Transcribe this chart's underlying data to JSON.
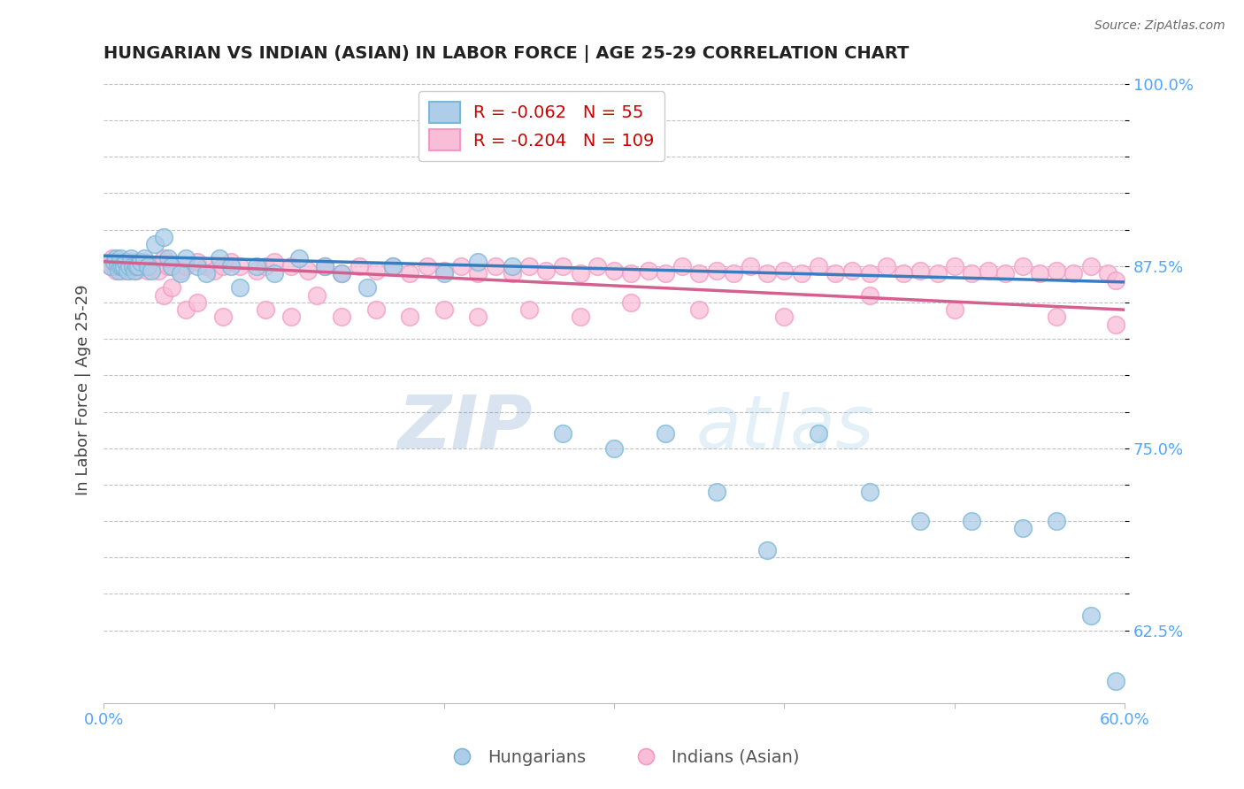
{
  "title": "HUNGARIAN VS INDIAN (ASIAN) IN LABOR FORCE | AGE 25-29 CORRELATION CHART",
  "source_text": "Source: ZipAtlas.com",
  "ylabel": "In Labor Force | Age 25-29",
  "xlim": [
    0.0,
    0.6
  ],
  "ylim": [
    0.575,
    1.005
  ],
  "blue_color": "#7ab8d9",
  "pink_color": "#f49ac2",
  "blue_fill": "#aecde8",
  "pink_fill": "#f9bdd8",
  "trend_blue": "#3a7dbf",
  "trend_pink": "#d46090",
  "legend_R_blue": "-0.062",
  "legend_N_blue": "55",
  "legend_R_pink": "-0.204",
  "legend_N_pink": "109",
  "watermark_zip": "ZIP",
  "watermark_atlas": "atlas",
  "blue_scatter_x": [
    0.004,
    0.006,
    0.007,
    0.008,
    0.009,
    0.01,
    0.01,
    0.011,
    0.012,
    0.013,
    0.014,
    0.015,
    0.016,
    0.017,
    0.018,
    0.019,
    0.02,
    0.022,
    0.024,
    0.026,
    0.028,
    0.03,
    0.035,
    0.038,
    0.04,
    0.045,
    0.048,
    0.055,
    0.06,
    0.068,
    0.075,
    0.08,
    0.09,
    0.1,
    0.115,
    0.13,
    0.14,
    0.155,
    0.17,
    0.2,
    0.22,
    0.24,
    0.27,
    0.3,
    0.33,
    0.36,
    0.39,
    0.42,
    0.45,
    0.48,
    0.51,
    0.54,
    0.56,
    0.58,
    0.595
  ],
  "blue_scatter_y": [
    0.875,
    0.878,
    0.88,
    0.875,
    0.872,
    0.875,
    0.88,
    0.875,
    0.875,
    0.878,
    0.872,
    0.875,
    0.88,
    0.875,
    0.872,
    0.875,
    0.875,
    0.878,
    0.88,
    0.875,
    0.872,
    0.89,
    0.895,
    0.88,
    0.875,
    0.87,
    0.88,
    0.875,
    0.87,
    0.88,
    0.875,
    0.86,
    0.875,
    0.87,
    0.88,
    0.875,
    0.87,
    0.86,
    0.875,
    0.87,
    0.878,
    0.875,
    0.76,
    0.75,
    0.76,
    0.72,
    0.68,
    0.76,
    0.72,
    0.7,
    0.7,
    0.695,
    0.7,
    0.635,
    0.59
  ],
  "pink_scatter_x": [
    0.004,
    0.005,
    0.006,
    0.007,
    0.008,
    0.009,
    0.01,
    0.011,
    0.012,
    0.013,
    0.014,
    0.015,
    0.016,
    0.017,
    0.018,
    0.019,
    0.02,
    0.022,
    0.024,
    0.026,
    0.028,
    0.03,
    0.032,
    0.035,
    0.038,
    0.04,
    0.045,
    0.048,
    0.055,
    0.06,
    0.065,
    0.07,
    0.075,
    0.08,
    0.09,
    0.095,
    0.1,
    0.11,
    0.12,
    0.13,
    0.14,
    0.15,
    0.16,
    0.17,
    0.18,
    0.19,
    0.2,
    0.21,
    0.22,
    0.23,
    0.24,
    0.25,
    0.26,
    0.27,
    0.28,
    0.29,
    0.3,
    0.31,
    0.32,
    0.33,
    0.34,
    0.35,
    0.36,
    0.37,
    0.38,
    0.39,
    0.4,
    0.41,
    0.42,
    0.43,
    0.44,
    0.45,
    0.46,
    0.47,
    0.48,
    0.49,
    0.5,
    0.51,
    0.52,
    0.53,
    0.54,
    0.55,
    0.56,
    0.57,
    0.58,
    0.59,
    0.595,
    0.035,
    0.04,
    0.048,
    0.055,
    0.07,
    0.095,
    0.11,
    0.125,
    0.14,
    0.16,
    0.18,
    0.2,
    0.22,
    0.25,
    0.28,
    0.31,
    0.35,
    0.4,
    0.45,
    0.5,
    0.56,
    0.595
  ],
  "pink_scatter_y": [
    0.875,
    0.88,
    0.875,
    0.872,
    0.878,
    0.875,
    0.875,
    0.872,
    0.878,
    0.875,
    0.875,
    0.872,
    0.878,
    0.875,
    0.875,
    0.872,
    0.878,
    0.875,
    0.878,
    0.872,
    0.875,
    0.875,
    0.872,
    0.88,
    0.875,
    0.875,
    0.872,
    0.875,
    0.878,
    0.875,
    0.872,
    0.875,
    0.878,
    0.875,
    0.872,
    0.875,
    0.878,
    0.875,
    0.872,
    0.875,
    0.87,
    0.875,
    0.872,
    0.875,
    0.87,
    0.875,
    0.872,
    0.875,
    0.87,
    0.875,
    0.87,
    0.875,
    0.872,
    0.875,
    0.87,
    0.875,
    0.872,
    0.87,
    0.872,
    0.87,
    0.875,
    0.87,
    0.872,
    0.87,
    0.875,
    0.87,
    0.872,
    0.87,
    0.875,
    0.87,
    0.872,
    0.87,
    0.875,
    0.87,
    0.872,
    0.87,
    0.875,
    0.87,
    0.872,
    0.87,
    0.875,
    0.87,
    0.872,
    0.87,
    0.875,
    0.87,
    0.865,
    0.855,
    0.86,
    0.845,
    0.85,
    0.84,
    0.845,
    0.84,
    0.855,
    0.84,
    0.845,
    0.84,
    0.845,
    0.84,
    0.845,
    0.84,
    0.85,
    0.845,
    0.84,
    0.855,
    0.845,
    0.84,
    0.835
  ],
  "blue_trend_x": [
    0.0,
    0.6
  ],
  "blue_trend_y": [
    0.882,
    0.864
  ],
  "pink_trend_x": [
    0.0,
    0.6
  ],
  "pink_trend_y": [
    0.878,
    0.845
  ],
  "background_color": "#ffffff",
  "grid_color": "#bbbbbb",
  "title_color": "#222222",
  "axis_label_color": "#444444",
  "tick_color": "#4da6ff"
}
